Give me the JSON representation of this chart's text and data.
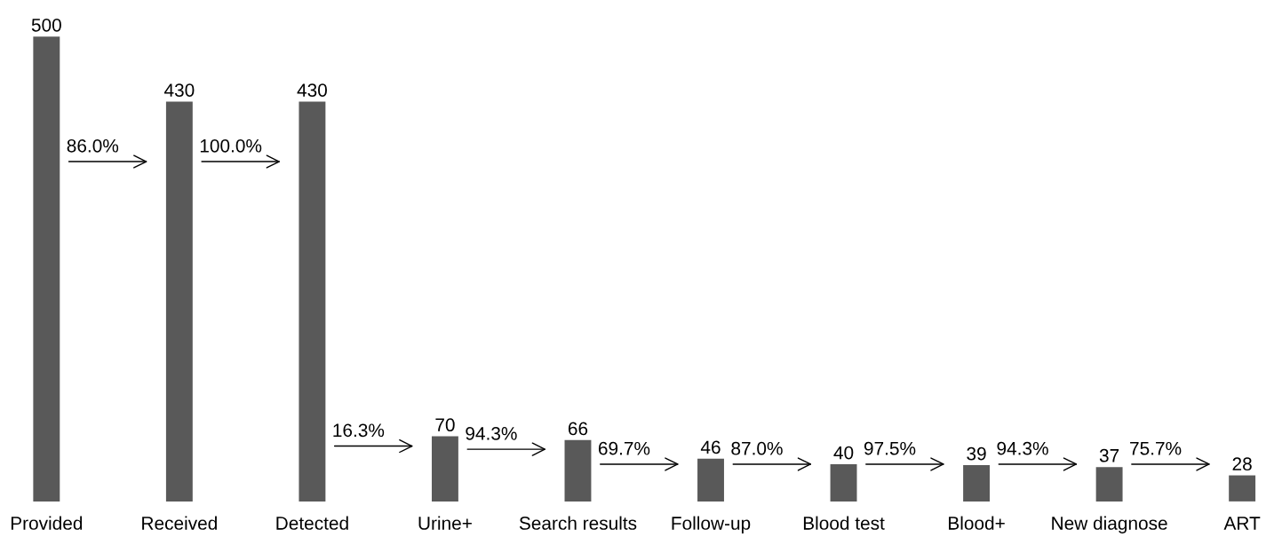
{
  "chart_data": {
    "type": "bar",
    "categories": [
      "Provided",
      "Received",
      "Detected",
      "Urine+",
      "Search results",
      "Follow-up",
      "Blood test",
      "Blood+",
      "New diagnose",
      "ART"
    ],
    "values": [
      500,
      430,
      430,
      70,
      66,
      46,
      40,
      39,
      37,
      28
    ],
    "color": "#595959",
    "tick_labels": "x",
    "data_labels": true,
    "annotations": [
      "86.0%",
      "100.0%",
      "16.3%",
      "94.3%",
      "69.7%",
      "87.0%",
      "97.5%",
      "94.3%",
      "75.7%"
    ],
    "grid": false,
    "legend": false
  }
}
